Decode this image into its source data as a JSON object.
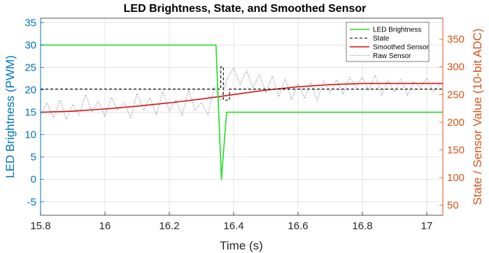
{
  "chart_data": {
    "type": "line",
    "title": "LED Brightness, State, and Smoothed Sensor",
    "xlabel": "Time (s)",
    "ylabel_left": "LED Brightness (PWM)",
    "ylabel_right": "State / Sensor Value (10-bit ADC)",
    "xlim": [
      15.8,
      17.05
    ],
    "ylim_left": [
      -8,
      36
    ],
    "ylim_right": [
      32,
      388
    ],
    "x_ticks": [
      "15.8",
      "16",
      "16.2",
      "16.4",
      "16.6",
      "16.8",
      "17"
    ],
    "y_left_ticks": [
      "-5",
      "0",
      "5",
      "10",
      "15",
      "20",
      "25",
      "30",
      "35"
    ],
    "y_right_ticks": [
      "50",
      "100",
      "150",
      "200",
      "250",
      "300",
      "350"
    ],
    "grid": true,
    "legend_position": "top-right",
    "colors": {
      "left_axis": "#0072BD",
      "right_axis": "#D95319",
      "led": "#22DD22",
      "state": "#000000",
      "smoothed": "#DD1111",
      "raw": "#8A96A8"
    },
    "series": [
      {
        "name": "LED Brightness",
        "axis": "left",
        "style": "solid",
        "x": [
          15.8,
          16.345,
          16.362,
          16.378,
          16.384,
          17.05
        ],
        "y": [
          30,
          30,
          0,
          15,
          15,
          15
        ]
      },
      {
        "name": "State",
        "axis": "right",
        "style": "dashed",
        "x": [
          15.8,
          16.36,
          16.36,
          16.368,
          16.368,
          16.38,
          16.38,
          16.387,
          16.387,
          17.05
        ],
        "y": [
          260,
          260,
          300,
          300,
          240,
          240,
          240,
          240,
          260,
          260
        ]
      },
      {
        "name": "Smoothed Sensor",
        "axis": "right",
        "style": "solid",
        "x": [
          15.8,
          15.9,
          16.0,
          16.1,
          16.2,
          16.3,
          16.4,
          16.5,
          16.6,
          16.7,
          16.8,
          16.9,
          17.0,
          17.05
        ],
        "y": [
          218,
          220,
          224,
          229,
          235,
          242,
          250,
          258,
          264,
          268,
          270,
          270,
          270,
          270
        ]
      },
      {
        "name": "Raw Sensor",
        "axis": "right",
        "style": "dotted",
        "x": [
          15.8,
          15.82,
          15.84,
          15.86,
          15.88,
          15.9,
          15.92,
          15.94,
          15.96,
          15.98,
          16.0,
          16.02,
          16.04,
          16.06,
          16.08,
          16.1,
          16.12,
          16.14,
          16.16,
          16.18,
          16.2,
          16.22,
          16.24,
          16.26,
          16.28,
          16.3,
          16.32,
          16.34,
          16.36,
          16.38,
          16.4,
          16.42,
          16.44,
          16.46,
          16.48,
          16.5,
          16.52,
          16.54,
          16.56,
          16.58,
          16.6,
          16.62,
          16.64,
          16.66,
          16.68,
          16.7,
          16.72,
          16.74,
          16.76,
          16.78,
          16.8,
          16.82,
          16.84,
          16.86,
          16.88,
          16.9,
          16.92,
          16.94,
          16.96,
          16.98,
          17.0,
          17.02,
          17.04
        ],
        "y": [
          215,
          235,
          208,
          240,
          205,
          232,
          212,
          250,
          218,
          238,
          210,
          245,
          222,
          236,
          207,
          252,
          222,
          244,
          213,
          256,
          220,
          240,
          212,
          258,
          222,
          236,
          213,
          263,
          240,
          280,
          298,
          268,
          294,
          262,
          287,
          253,
          283,
          246,
          279,
          240,
          270,
          243,
          271,
          239,
          275,
          253,
          277,
          251,
          281,
          263,
          281,
          258,
          285,
          248,
          276,
          255,
          278,
          248,
          274,
          263,
          280,
          255,
          268
        ]
      }
    ]
  }
}
